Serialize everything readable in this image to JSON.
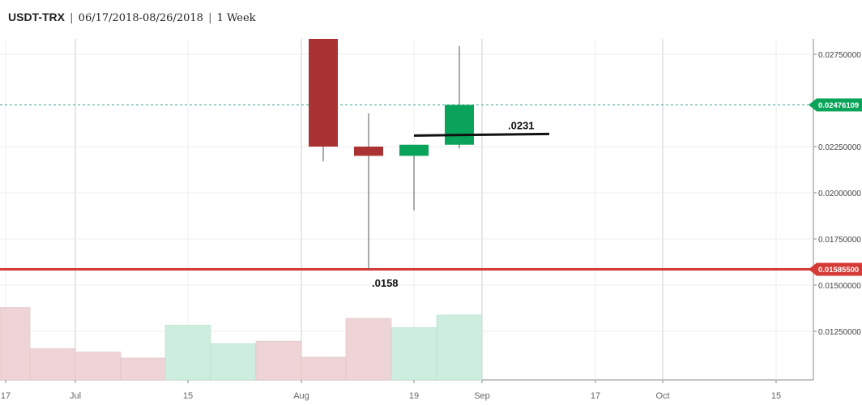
{
  "header": {
    "pair": "USDT-TRX",
    "range": "06/17/2018-08/26/2018",
    "interval": "1 Week"
  },
  "colors": {
    "up": "#0aa35a",
    "down": "#ab3232",
    "up_volume": "#cdeede",
    "down_volume": "#eed4d6",
    "support_line": "#d63a36",
    "last_price_line": "#40a9a0"
  },
  "chart_data": {
    "type": "candlestick",
    "x_tick_labels": [
      "17",
      "Jul",
      "15",
      "Aug",
      "19",
      "Sep",
      "17",
      "Oct",
      "15"
    ],
    "y_tick_labels": [
      "0.02750000",
      "0.02250000",
      "0.02000000",
      "0.01750000",
      "0.01500000",
      "0.01250000"
    ],
    "ylim": [
      0.0104,
      0.0285
    ],
    "grid": true,
    "candles": [
      {
        "week": "08/05",
        "open": 0.029,
        "high": 0.029,
        "low": 0.0217,
        "close": 0.0225,
        "direction": "down"
      },
      {
        "week": "08/12",
        "open": 0.0225,
        "high": 0.0243,
        "low": 0.01585,
        "close": 0.022,
        "direction": "down"
      },
      {
        "week": "08/19",
        "open": 0.022,
        "high": 0.0226,
        "low": 0.01905,
        "close": 0.0226,
        "direction": "up"
      },
      {
        "week": "08/26",
        "open": 0.0226,
        "high": 0.02795,
        "low": 0.0224,
        "close": 0.02476,
        "direction": "up"
      }
    ],
    "volume": [
      {
        "level": 0.86,
        "direction": "down"
      },
      {
        "level": 0.37,
        "direction": "down"
      },
      {
        "level": 0.33,
        "direction": "down"
      },
      {
        "level": 0.26,
        "direction": "down"
      },
      {
        "level": 0.65,
        "direction": "up"
      },
      {
        "level": 0.43,
        "direction": "up"
      },
      {
        "level": 0.46,
        "direction": "down"
      },
      {
        "level": 0.27,
        "direction": "down"
      },
      {
        "level": 0.73,
        "direction": "down"
      },
      {
        "level": 0.62,
        "direction": "up"
      },
      {
        "level": 0.77,
        "direction": "up"
      }
    ],
    "price_tags": [
      {
        "label": "0.02476109",
        "value": 0.02476109,
        "role": "last-price"
      },
      {
        "label": "0.01585500",
        "value": 0.015855,
        "role": "support"
      }
    ],
    "annotations": [
      {
        "label": ".0231",
        "value": 0.0231
      },
      {
        "label": ".0158",
        "value": 0.0158
      }
    ]
  }
}
